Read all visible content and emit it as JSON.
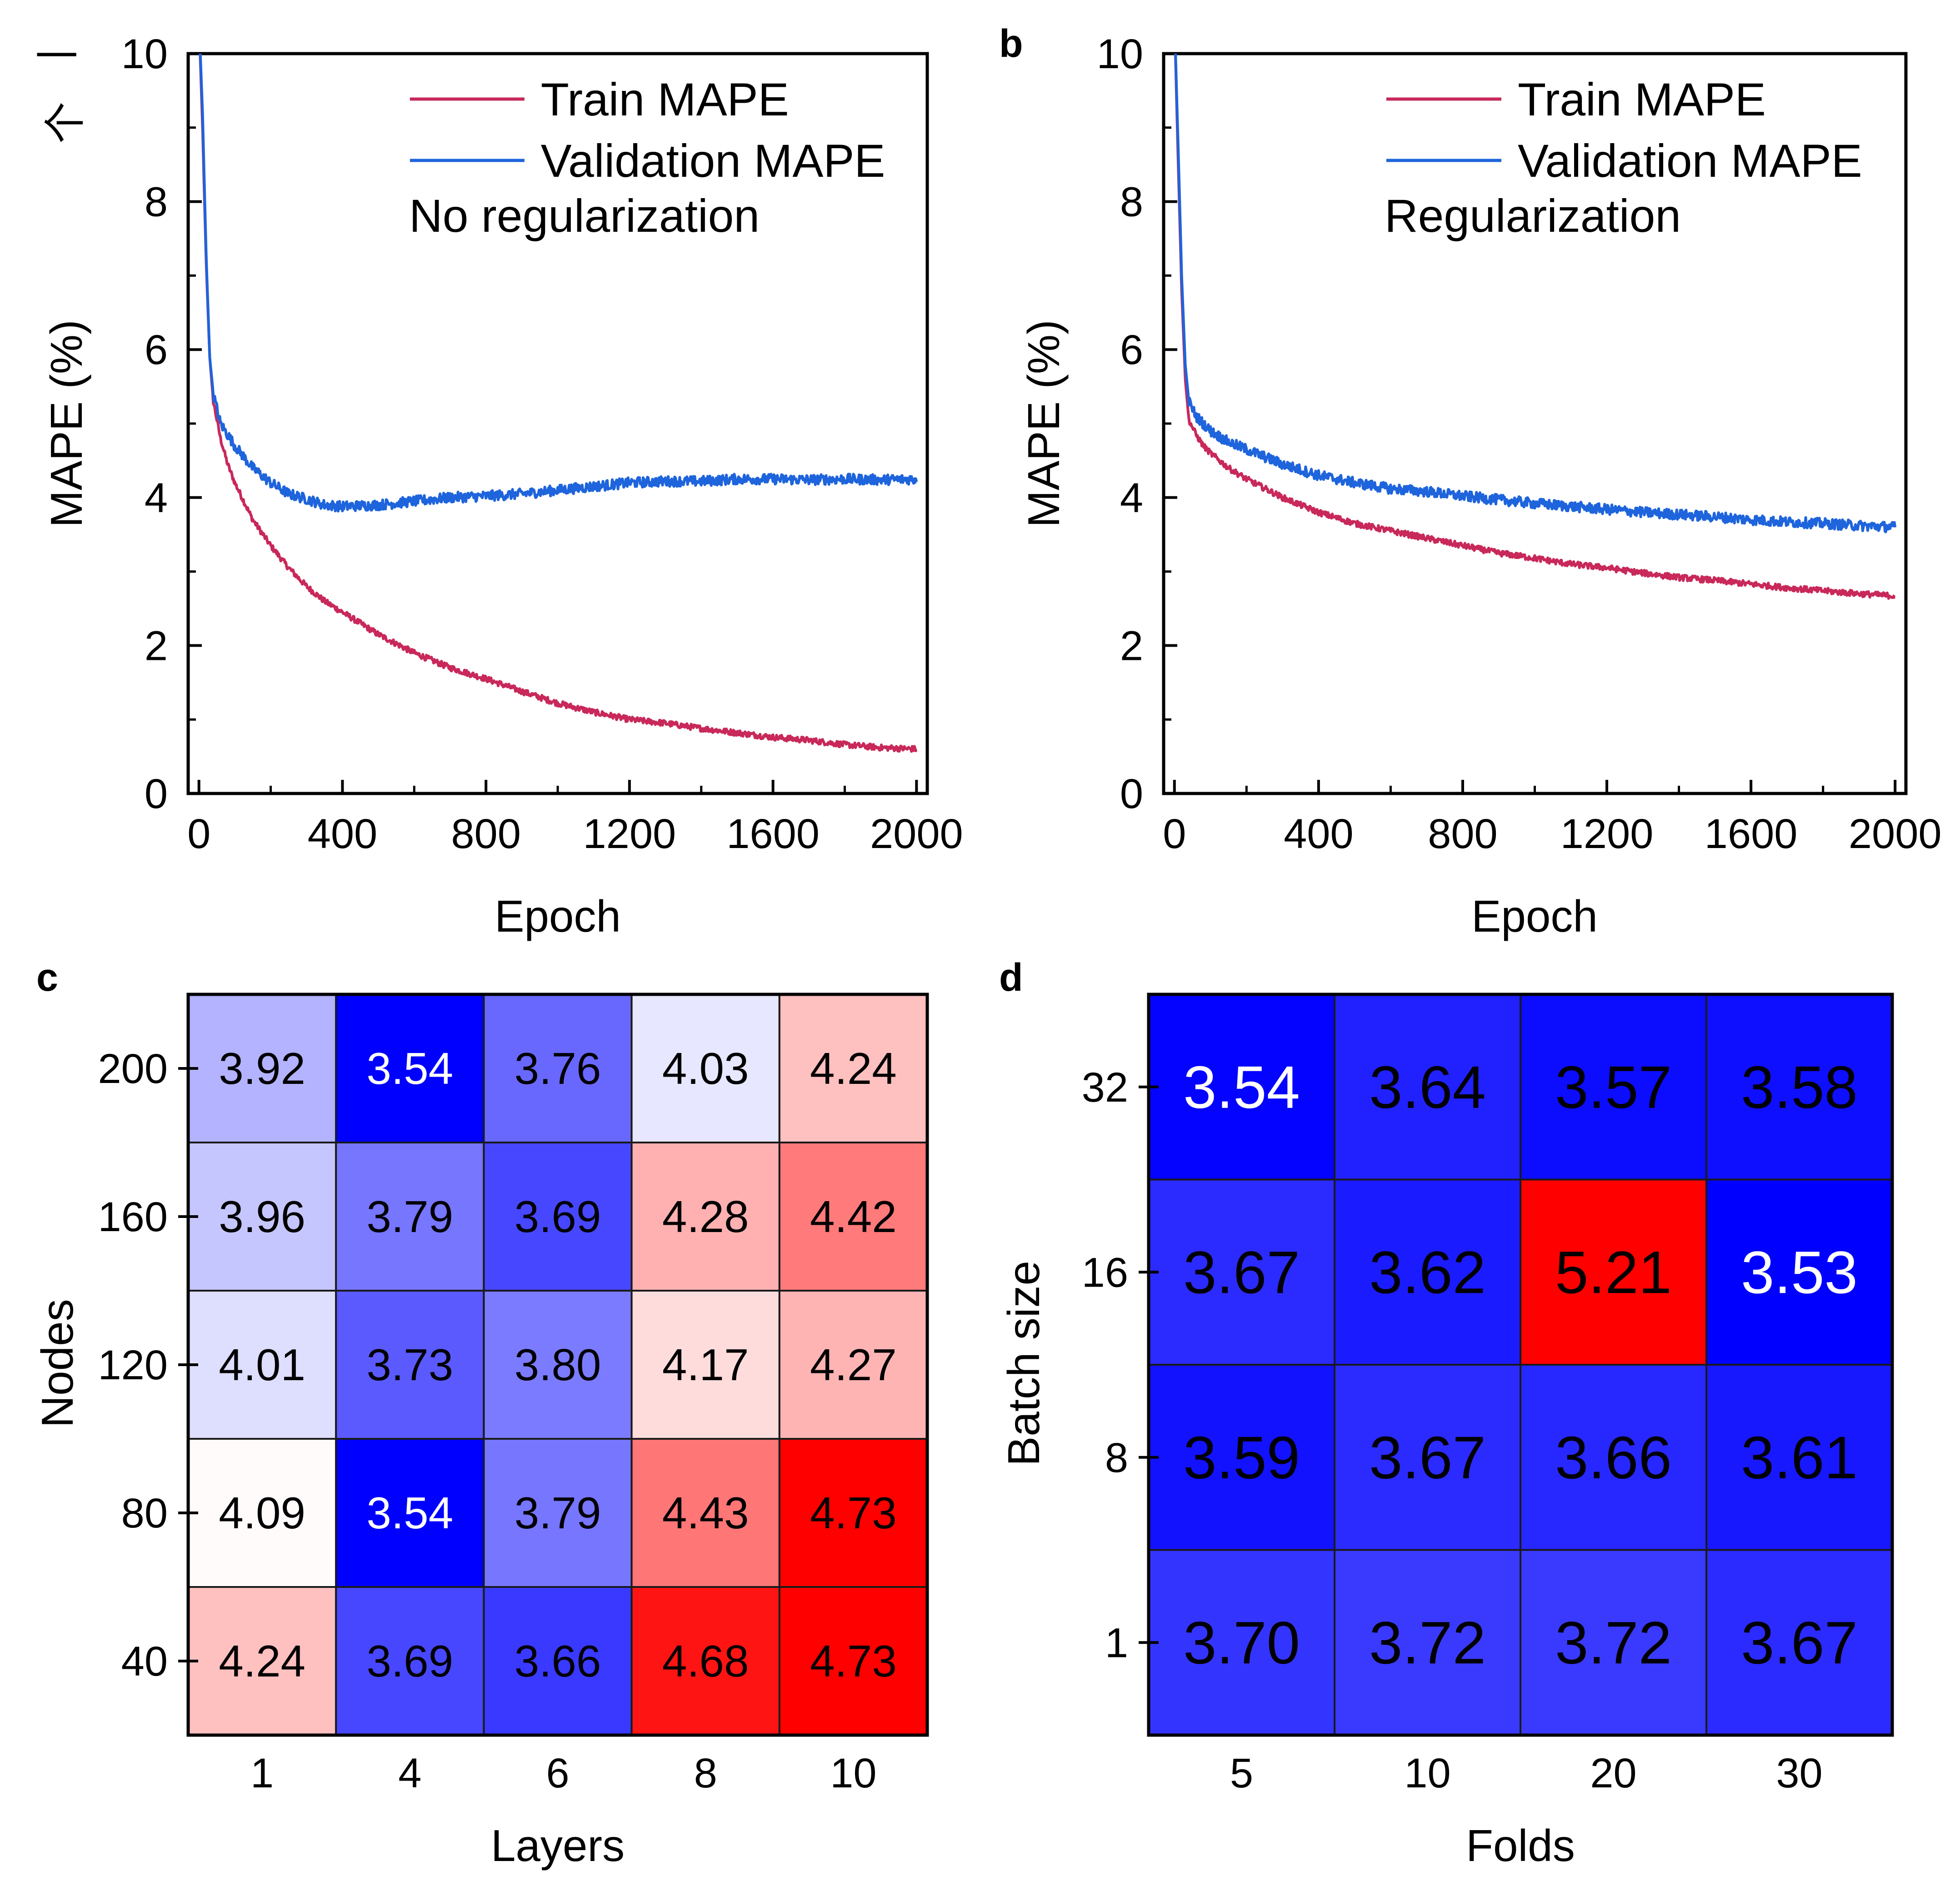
{
  "figure": {
    "corner_marks": [
      "|",
      "个"
    ]
  },
  "chart_data": [
    {
      "panel": "a",
      "panel_label": "",
      "type": "line",
      "xlabel": "Epoch",
      "ylabel": "MAPE (%)",
      "xlim": [
        -30,
        2030
      ],
      "ylim": [
        0,
        10
      ],
      "xticks": [
        0,
        400,
        800,
        1200,
        1600,
        2000
      ],
      "yticks": [
        0,
        2,
        4,
        6,
        8,
        10
      ],
      "annotation": "No regularization",
      "legend_position": "top-right",
      "series": [
        {
          "name": "Train MAPE",
          "color": "#c8285a",
          "x": [
            0,
            10,
            20,
            30,
            40,
            60,
            80,
            100,
            150,
            200,
            250,
            300,
            350,
            400,
            500,
            600,
            700,
            800,
            900,
            1000,
            1100,
            1200,
            1300,
            1400,
            1500,
            1600,
            1700,
            1800,
            1900,
            2000
          ],
          "y": [
            10.5,
            9.0,
            7.2,
            5.9,
            5.3,
            4.8,
            4.45,
            4.2,
            3.7,
            3.35,
            3.05,
            2.8,
            2.6,
            2.45,
            2.15,
            1.9,
            1.7,
            1.55,
            1.38,
            1.22,
            1.1,
            1.0,
            0.95,
            0.88,
            0.82,
            0.76,
            0.72,
            0.66,
            0.62,
            0.6
          ]
        },
        {
          "name": "Validation MAPE",
          "color": "#1e64dc",
          "x": [
            0,
            10,
            20,
            30,
            40,
            60,
            80,
            100,
            150,
            200,
            250,
            300,
            350,
            400,
            500,
            600,
            700,
            800,
            900,
            1000,
            1100,
            1200,
            1300,
            1400,
            1500,
            1600,
            1700,
            1800,
            1900,
            2000
          ],
          "y": [
            10.5,
            9.2,
            7.3,
            5.9,
            5.4,
            5.0,
            4.85,
            4.7,
            4.4,
            4.2,
            4.05,
            3.98,
            3.9,
            3.88,
            3.9,
            3.95,
            4.0,
            4.02,
            4.05,
            4.1,
            4.15,
            4.2,
            4.22,
            4.22,
            4.25,
            4.25,
            4.24,
            4.25,
            4.24,
            4.25
          ]
        }
      ]
    },
    {
      "panel": "b",
      "panel_label": "b",
      "type": "line",
      "xlabel": "Epoch",
      "ylabel": "MAPE (%)",
      "xlim": [
        -30,
        2030
      ],
      "ylim": [
        0,
        10
      ],
      "xticks": [
        0,
        400,
        800,
        1200,
        1600,
        2000
      ],
      "yticks": [
        0,
        2,
        4,
        6,
        8,
        10
      ],
      "annotation": "Regularization",
      "legend_position": "top-right",
      "series": [
        {
          "name": "Train MAPE",
          "color": "#c8285a",
          "x": [
            0,
            10,
            20,
            30,
            40,
            60,
            80,
            100,
            150,
            200,
            300,
            400,
            500,
            600,
            700,
            800,
            900,
            1000,
            1100,
            1200,
            1300,
            1400,
            1500,
            1600,
            1700,
            1800,
            1900,
            2000
          ],
          "y": [
            10.5,
            8.6,
            6.8,
            5.6,
            5.05,
            4.85,
            4.7,
            4.6,
            4.4,
            4.25,
            4.0,
            3.8,
            3.65,
            3.55,
            3.45,
            3.35,
            3.25,
            3.18,
            3.1,
            3.05,
            2.98,
            2.92,
            2.88,
            2.83,
            2.78,
            2.74,
            2.7,
            2.67
          ]
        },
        {
          "name": "Validation MAPE",
          "color": "#1e64dc",
          "x": [
            0,
            10,
            20,
            30,
            40,
            60,
            80,
            100,
            150,
            200,
            300,
            400,
            500,
            600,
            700,
            800,
            900,
            1000,
            1100,
            1200,
            1300,
            1400,
            1500,
            1600,
            1700,
            1800,
            1900,
            2000
          ],
          "y": [
            10.5,
            8.8,
            7.0,
            5.8,
            5.3,
            5.1,
            5.0,
            4.9,
            4.75,
            4.65,
            4.45,
            4.3,
            4.2,
            4.12,
            4.08,
            4.02,
            3.97,
            3.92,
            3.88,
            3.84,
            3.8,
            3.77,
            3.74,
            3.7,
            3.67,
            3.65,
            3.62,
            3.6
          ]
        }
      ]
    },
    {
      "panel": "c",
      "panel_label": "c",
      "type": "heatmap",
      "xlabel": "Layers",
      "ylabel": "Nodes",
      "x_categories": [
        "1",
        "4",
        "6",
        "8",
        "10"
      ],
      "y_categories": [
        "200",
        "160",
        "120",
        "80",
        "40"
      ],
      "values": [
        [
          3.92,
          3.54,
          3.76,
          4.03,
          4.24
        ],
        [
          3.96,
          3.79,
          3.69,
          4.28,
          4.42
        ],
        [
          4.01,
          3.73,
          3.8,
          4.17,
          4.27
        ],
        [
          4.09,
          3.54,
          3.79,
          4.43,
          4.73
        ],
        [
          4.24,
          3.69,
          3.66,
          4.68,
          4.73
        ]
      ],
      "labels": [
        [
          "3.92",
          "3.54",
          "3.76",
          "4.03",
          "4.24"
        ],
        [
          "3.96",
          "3.79",
          "3.69",
          "4.28",
          "4.42"
        ],
        [
          "4.01",
          "3.73",
          "3.80",
          "4.17",
          "4.27"
        ],
        [
          "4.09",
          "3.54",
          "3.79",
          "4.43",
          "4.73"
        ],
        [
          "4.24",
          "3.69",
          "3.66",
          "4.68",
          "4.73"
        ]
      ],
      "color_scale": {
        "low": "#0000ff",
        "mid": "#ffffff",
        "high": "#ff0000",
        "min": 3.54,
        "mid_value": 4.08,
        "max": 4.73
      }
    },
    {
      "panel": "d",
      "panel_label": "d",
      "type": "heatmap",
      "xlabel": "Folds",
      "ylabel": "Batch size",
      "x_categories": [
        "5",
        "10",
        "20",
        "30"
      ],
      "y_categories": [
        "32",
        "16",
        "8",
        "1"
      ],
      "values": [
        [
          3.54,
          3.64,
          3.57,
          3.58
        ],
        [
          3.67,
          3.62,
          5.21,
          3.53
        ],
        [
          3.59,
          3.67,
          3.66,
          3.61
        ],
        [
          3.7,
          3.72,
          3.72,
          3.67
        ]
      ],
      "labels": [
        [
          "3.54",
          "3.64",
          "3.57",
          "3.58"
        ],
        [
          "3.67",
          "3.62",
          "5.21",
          "3.53"
        ],
        [
          "3.59",
          "3.67",
          "3.66",
          "3.61"
        ],
        [
          "3.70",
          "3.72",
          "3.72",
          "3.67"
        ]
      ],
      "color_scale": {
        "low": "#0000ff",
        "mid": "#ffffff",
        "high": "#ff0000",
        "min": 3.53,
        "mid_value": 4.37,
        "max": 5.21
      }
    }
  ]
}
